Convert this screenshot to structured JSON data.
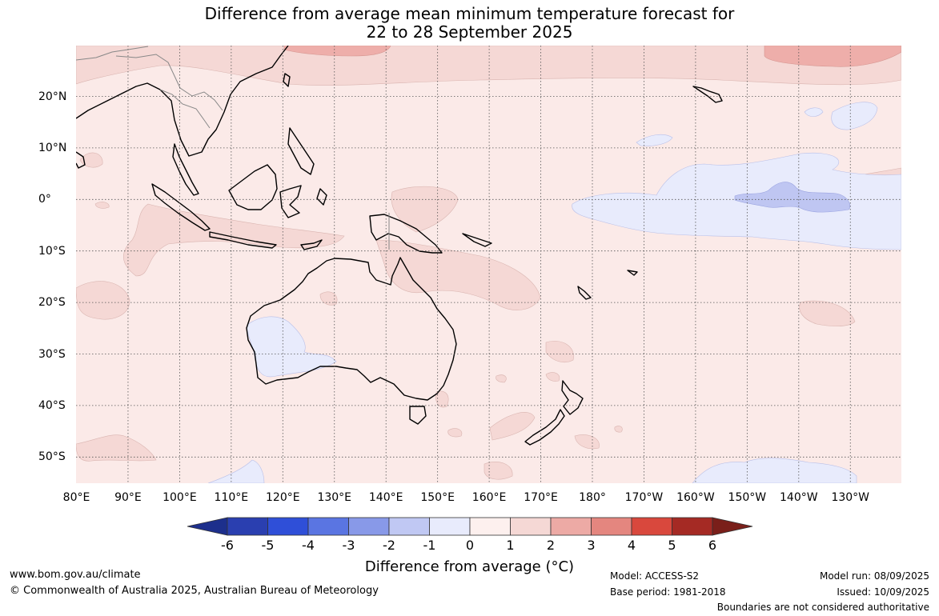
{
  "title": {
    "line1": "Difference from average mean minimum temperature forecast for",
    "line2": "22 to 28 September 2025"
  },
  "map": {
    "region": "Australia, Maritime Continent and Western Pacific",
    "background_color": "#fbeae8",
    "contour_levels": {
      "neg1_0": "#e8ebfc",
      "neg2_neg1": "#bfc6f2",
      "0_1": "#fbeae8",
      "1_2": "#f5d8d5",
      "2_3": "#eeaeaa"
    },
    "longitude_labels": [
      "80°E",
      "90°E",
      "100°E",
      "110°E",
      "120°E",
      "130°E",
      "140°E",
      "150°E",
      "160°E",
      "170°E",
      "180°",
      "170°W",
      "160°W",
      "150°W",
      "140°W",
      "130°W"
    ],
    "latitude_labels": [
      "20°N",
      "10°N",
      "0°",
      "10°S",
      "20°S",
      "30°S",
      "40°S",
      "50°S"
    ]
  },
  "colorbar": {
    "ticks": [
      "-6",
      "-5",
      "-4",
      "-3",
      "-2",
      "-1",
      "0",
      "1",
      "2",
      "3",
      "4",
      "5",
      "6"
    ],
    "colors": [
      "#1d2f8c",
      "#2a3fb0",
      "#2f4fd8",
      "#5a75e2",
      "#8899e8",
      "#c0c8f3",
      "#e8ebfc",
      "#fdf0ee",
      "#f5d8d5",
      "#edaaa5",
      "#e4867f",
      "#d9483d",
      "#a52a24",
      "#7a1f1a"
    ],
    "label": "Difference from average (°C)"
  },
  "footer": {
    "website": "www.bom.gov.au/climate",
    "copyright": "© Commonwealth of Australia 2025, Australian Bureau of Meteorology",
    "model": "Model: ACCESS-S2",
    "base_period": "Base period: 1981-2018",
    "model_run": "Model run: 08/09/2025",
    "issued": "Issued: 10/09/2025",
    "disclaimer": "Boundaries are not considered authoritative"
  }
}
